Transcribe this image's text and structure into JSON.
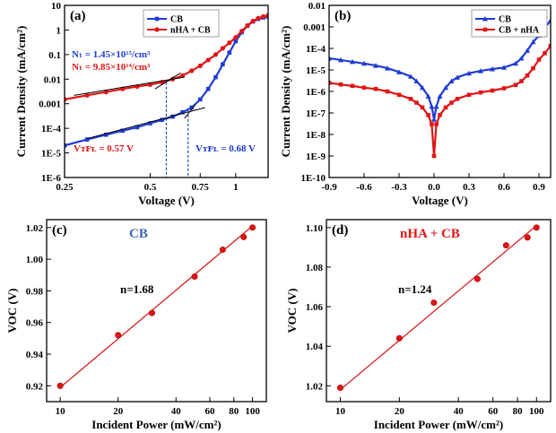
{
  "colors": {
    "cb": "#1f3bd6",
    "nha": "#e01515",
    "fit": "#d62020",
    "dash": "#1f4fb3",
    "cbTitle": "#3a66b5"
  },
  "chart_data": [
    {
      "id": "a",
      "panel_label": "(a)",
      "type": "line",
      "xscale": "log",
      "yscale": "log",
      "xlabel": "Voltage (V)",
      "ylabel": "Current Density (mA/cm²)",
      "xlim": [
        0.25,
        1.3
      ],
      "ylim": [
        1e-06,
        10
      ],
      "xticks": [
        {
          "v": 0.25,
          "label": "0.25"
        },
        {
          "v": 0.5,
          "label": "0.5"
        },
        {
          "v": 0.75,
          "label": "0.75"
        },
        {
          "v": 1,
          "label": "1"
        }
      ],
      "yticks": [
        {
          "v": 1e-06,
          "label": "1E-6"
        },
        {
          "v": 1e-05,
          "label": "1E-5"
        },
        {
          "v": 0.0001,
          "label": "1E-4"
        },
        {
          "v": 0.001,
          "label": "0.001"
        },
        {
          "v": 0.01,
          "label": "0.01"
        },
        {
          "v": 0.1,
          "label": "0.1"
        },
        {
          "v": 1,
          "label": "1"
        },
        {
          "v": 10,
          "label": "10"
        }
      ],
      "legend": {
        "position": "top-center",
        "entries": [
          "CB",
          "nHA + CB"
        ]
      },
      "series": [
        {
          "name": "CB",
          "color": "cb",
          "marker": "square",
          "x": [
            0.25,
            0.3,
            0.35,
            0.4,
            0.45,
            0.5,
            0.55,
            0.6,
            0.65,
            0.7,
            0.75,
            0.8,
            0.85,
            0.9,
            0.95,
            1.0,
            1.05,
            1.1,
            1.15,
            1.2,
            1.25,
            1.3
          ],
          "y": [
            2e-05,
            3.5e-05,
            5.5e-05,
            8e-05,
            0.00011,
            0.00016,
            0.00022,
            0.0003,
            0.00045,
            0.0007,
            0.0015,
            0.004,
            0.012,
            0.04,
            0.12,
            0.35,
            0.8,
            1.5,
            2.2,
            2.8,
            3.2,
            3.5
          ]
        },
        {
          "name": "nHA + CB",
          "color": "nha",
          "marker": "circle",
          "x": [
            0.25,
            0.3,
            0.35,
            0.4,
            0.45,
            0.5,
            0.55,
            0.6,
            0.65,
            0.7,
            0.75,
            0.8,
            0.85,
            0.9,
            0.95,
            1.0,
            1.05,
            1.1,
            1.15,
            1.2,
            1.25,
            1.3
          ],
          "y": [
            0.0015,
            0.0022,
            0.003,
            0.004,
            0.005,
            0.006,
            0.0075,
            0.01,
            0.014,
            0.022,
            0.035,
            0.06,
            0.1,
            0.18,
            0.3,
            0.5,
            0.9,
            1.5,
            2.3,
            3.0,
            3.5,
            4.0
          ]
        }
      ],
      "annotations": [
        {
          "text": "Nₜ = 1.45×10¹⁵/cm³",
          "color": "cb"
        },
        {
          "text": "Nₜ = 9.85×10¹⁴/cm³",
          "color": "nha"
        },
        {
          "text": "Vᴛꜰʟ = 0.57 V",
          "color": "nha"
        },
        {
          "text": "Vᴛꜰʟ = 0.68 V",
          "color": "cb"
        }
      ],
      "vtfl_lines": [
        0.57,
        0.68
      ]
    },
    {
      "id": "b",
      "panel_label": "(b)",
      "type": "line",
      "xscale": "linear",
      "yscale": "log",
      "xlabel": "Voltage (V)",
      "ylabel": "Current Density (mA/cm²)",
      "xlim": [
        -0.9,
        1.0
      ],
      "ylim": [
        1e-10,
        0.01
      ],
      "xticks": [
        {
          "v": -0.9,
          "label": "-0.9"
        },
        {
          "v": -0.6,
          "label": "-0.6"
        },
        {
          "v": -0.3,
          "label": "-0.3"
        },
        {
          "v": 0.0,
          "label": "0.0"
        },
        {
          "v": 0.3,
          "label": "0.3"
        },
        {
          "v": 0.6,
          "label": "0.6"
        },
        {
          "v": 0.9,
          "label": "0.9"
        }
      ],
      "yticks": [
        {
          "v": 1e-10,
          "label": "1E-10"
        },
        {
          "v": 1e-09,
          "label": "1E-9"
        },
        {
          "v": 1e-08,
          "label": "1E-8"
        },
        {
          "v": 1e-07,
          "label": "1E-7"
        },
        {
          "v": 1e-06,
          "label": "1E-6"
        },
        {
          "v": 1e-05,
          "label": "1E-5"
        },
        {
          "v": 0.0001,
          "label": "1E-4"
        },
        {
          "v": 0.001,
          "label": "0.001"
        },
        {
          "v": 0.01,
          "label": "0.01"
        }
      ],
      "legend": {
        "position": "top-right",
        "entries": [
          "CB",
          "CB + nHA"
        ]
      },
      "series": [
        {
          "name": "CB",
          "color": "cb",
          "marker": "triangle",
          "x": [
            -0.9,
            -0.8,
            -0.7,
            -0.6,
            -0.5,
            -0.4,
            -0.3,
            -0.2,
            -0.15,
            -0.1,
            -0.05,
            -0.02,
            0.0,
            0.02,
            0.05,
            0.1,
            0.15,
            0.2,
            0.3,
            0.4,
            0.5,
            0.6,
            0.7,
            0.75,
            0.8,
            0.85,
            0.9,
            0.95,
            1.0
          ],
          "y": [
            3.5e-05,
            2.9e-05,
            2.4e-05,
            2e-05,
            1.6e-05,
            1.2e-05,
            8e-06,
            5e-06,
            3e-06,
            1.5e-06,
            6e-07,
            2e-07,
            5e-08,
            2e-07,
            6e-07,
            1.5e-06,
            3e-06,
            4.5e-06,
            7e-06,
            9e-06,
            1.1e-05,
            1.3e-05,
            2e-05,
            3.5e-05,
            8e-05,
            0.0002,
            0.0004,
            0.0009,
            0.002
          ]
        },
        {
          "name": "CB + nHA",
          "color": "nha",
          "marker": "square",
          "x": [
            -0.9,
            -0.8,
            -0.7,
            -0.6,
            -0.5,
            -0.4,
            -0.3,
            -0.2,
            -0.15,
            -0.1,
            -0.05,
            -0.02,
            0.0,
            0.02,
            0.05,
            0.1,
            0.15,
            0.2,
            0.3,
            0.4,
            0.5,
            0.6,
            0.7,
            0.75,
            0.8,
            0.85,
            0.9,
            0.95,
            1.0
          ],
          "y": [
            2.5e-06,
            2.1e-06,
            1.8e-06,
            1.5e-06,
            1.3e-06,
            1e-06,
            7e-07,
            4.5e-07,
            3e-07,
            1.8e-07,
            8e-08,
            3e-08,
            1e-09,
            3e-08,
            8e-08,
            1.8e-07,
            3e-07,
            4.5e-07,
            7e-07,
            9e-07,
            1.1e-06,
            1.4e-06,
            2e-06,
            3e-06,
            5.5e-06,
            1.2e-05,
            3e-05,
            6e-05,
            0.00013
          ]
        }
      ]
    },
    {
      "id": "c",
      "panel_label": "(c)",
      "title": "CB",
      "title_color": "cbTitle",
      "type": "scatter",
      "xscale": "log",
      "yscale": "linear",
      "xlabel": "Incident Power (mW/cm²)",
      "ylabel": "VOC (V)",
      "xlim": [
        8.5,
        118
      ],
      "ylim": [
        0.91,
        1.025
      ],
      "xticks": [
        {
          "v": 10,
          "label": "10"
        },
        {
          "v": 20,
          "label": "20"
        },
        {
          "v": 40,
          "label": "40"
        },
        {
          "v": 60,
          "label": "60"
        },
        {
          "v": 80,
          "label": "80"
        },
        {
          "v": 100,
          "label": "100"
        }
      ],
      "yticks": [
        {
          "v": 0.92,
          "label": "0.92"
        },
        {
          "v": 0.94,
          "label": "0.94"
        },
        {
          "v": 0.96,
          "label": "0.96"
        },
        {
          "v": 0.98,
          "label": "0.98"
        },
        {
          "v": 1.0,
          "label": "1.00"
        },
        {
          "v": 1.02,
          "label": "1.02"
        }
      ],
      "ideality": "n=1.68",
      "x": [
        10,
        20,
        30,
        50,
        70,
        90,
        100
      ],
      "y": [
        0.92,
        0.952,
        0.966,
        0.989,
        1.006,
        1.014,
        1.02
      ],
      "fit": [
        [
          10,
          0.919
        ],
        [
          100,
          1.021
        ]
      ]
    },
    {
      "id": "d",
      "panel_label": "(d)",
      "title": "nHA + CB",
      "title_color": "nha",
      "type": "scatter",
      "xscale": "log",
      "yscale": "linear",
      "xlabel": "Incident Power (mW/cm²)",
      "ylabel": "VOC (V)",
      "xlim": [
        8.5,
        118
      ],
      "ylim": [
        1.012,
        1.104
      ],
      "xticks": [
        {
          "v": 10,
          "label": "10"
        },
        {
          "v": 20,
          "label": "20"
        },
        {
          "v": 40,
          "label": "40"
        },
        {
          "v": 60,
          "label": "60"
        },
        {
          "v": 80,
          "label": "80"
        },
        {
          "v": 100,
          "label": "100"
        }
      ],
      "yticks": [
        {
          "v": 1.02,
          "label": "1.02"
        },
        {
          "v": 1.04,
          "label": "1.04"
        },
        {
          "v": 1.06,
          "label": "1.06"
        },
        {
          "v": 1.08,
          "label": "1.08"
        },
        {
          "v": 1.1,
          "label": "1.10"
        }
      ],
      "ideality": "n=1.24",
      "x": [
        10,
        20,
        30,
        50,
        70,
        90,
        100
      ],
      "y": [
        1.019,
        1.044,
        1.062,
        1.074,
        1.091,
        1.095,
        1.1
      ],
      "fit": [
        [
          10,
          1.018
        ],
        [
          100,
          1.101
        ]
      ]
    }
  ]
}
